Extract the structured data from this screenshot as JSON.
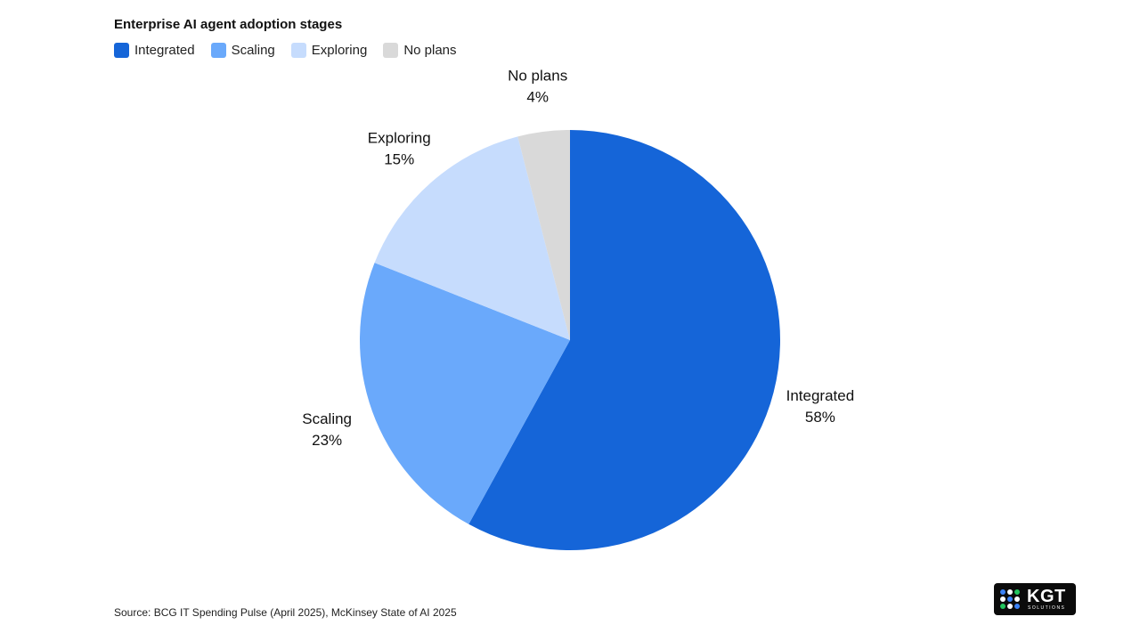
{
  "chart_data": {
    "type": "pie",
    "title": "Enterprise AI agent adoption stages",
    "legend_position": "top-left",
    "slices": [
      {
        "label": "Integrated",
        "value": 58,
        "display": "58%",
        "color": "#1565d8"
      },
      {
        "label": "Scaling",
        "value": 23,
        "display": "23%",
        "color": "#6aa9fb"
      },
      {
        "label": "Exploring",
        "value": 15,
        "display": "15%",
        "color": "#c6dcfd"
      },
      {
        "label": "No plans",
        "value": 4,
        "display": "4%",
        "color": "#d9d9d9"
      }
    ]
  },
  "source": "Source: BCG IT Spending Pulse (April 2025), McKinsey State of AI 2025",
  "logo": {
    "text": "KGT",
    "subtext": "SOLUTIONS",
    "dot_colors": [
      "#3b82f6",
      "#ffffff",
      "#22c55e",
      "#ffffff",
      "#3b82f6",
      "#ffffff",
      "#22c55e",
      "#ffffff",
      "#3b82f6"
    ]
  }
}
